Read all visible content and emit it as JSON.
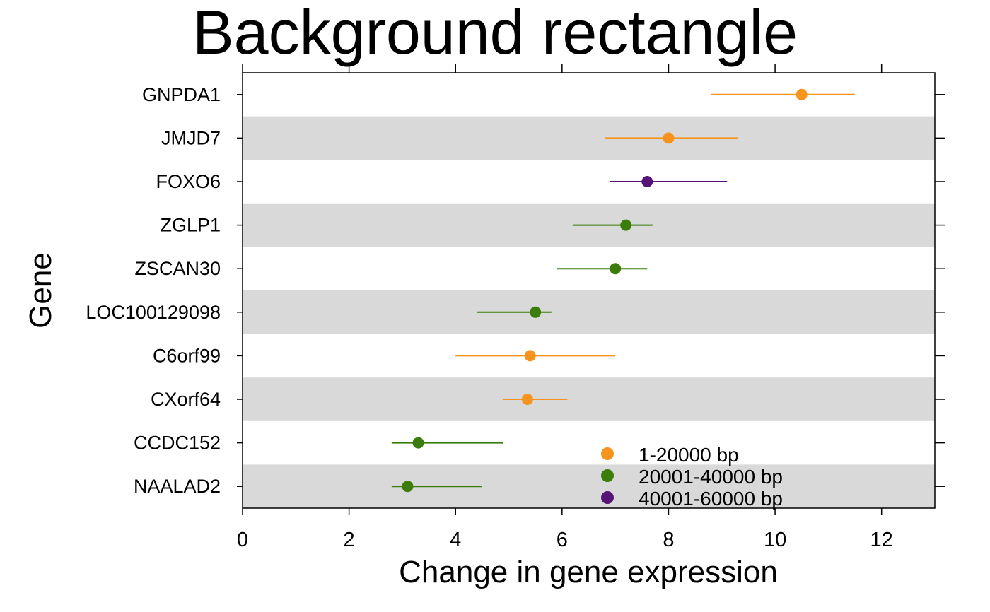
{
  "chart_data": {
    "type": "dot-errorbar",
    "title": "Background rectangle",
    "xlabel": "Change in gene expression",
    "ylabel": "Gene",
    "xlim": [
      0,
      13
    ],
    "x_ticks": [
      0,
      2,
      4,
      6,
      8,
      10,
      12
    ],
    "alternating_row_shading": true,
    "shade_color": "#d9d9d9",
    "legend_position": "bottom-center",
    "groups": [
      {
        "name": "1-20000 bp",
        "color": "#f7941d"
      },
      {
        "name": "20001-40000 bp",
        "color": "#3a7d0a"
      },
      {
        "name": "40001-60000 bp",
        "color": "#561478"
      }
    ],
    "genes": [
      {
        "name": "GNPDA1",
        "value": 10.5,
        "low": 8.8,
        "high": 11.5,
        "group": 0
      },
      {
        "name": "JMJD7",
        "value": 8.0,
        "low": 6.8,
        "high": 9.3,
        "group": 0
      },
      {
        "name": "FOXO6",
        "value": 7.6,
        "low": 6.9,
        "high": 9.1,
        "group": 2
      },
      {
        "name": "ZGLP1",
        "value": 7.2,
        "low": 6.2,
        "high": 7.7,
        "group": 1
      },
      {
        "name": "ZSCAN30",
        "value": 7.0,
        "low": 5.9,
        "high": 7.6,
        "group": 1
      },
      {
        "name": "LOC100129098",
        "value": 5.5,
        "low": 4.4,
        "high": 5.8,
        "group": 1
      },
      {
        "name": "C6orf99",
        "value": 5.4,
        "low": 4.0,
        "high": 7.0,
        "group": 0
      },
      {
        "name": "CXorf64",
        "value": 5.35,
        "low": 4.9,
        "high": 6.1,
        "group": 0
      },
      {
        "name": "CCDC152",
        "value": 3.3,
        "low": 2.8,
        "high": 4.9,
        "group": 1
      },
      {
        "name": "NAALAD2",
        "value": 3.1,
        "low": 2.8,
        "high": 4.5,
        "group": 1
      }
    ]
  }
}
